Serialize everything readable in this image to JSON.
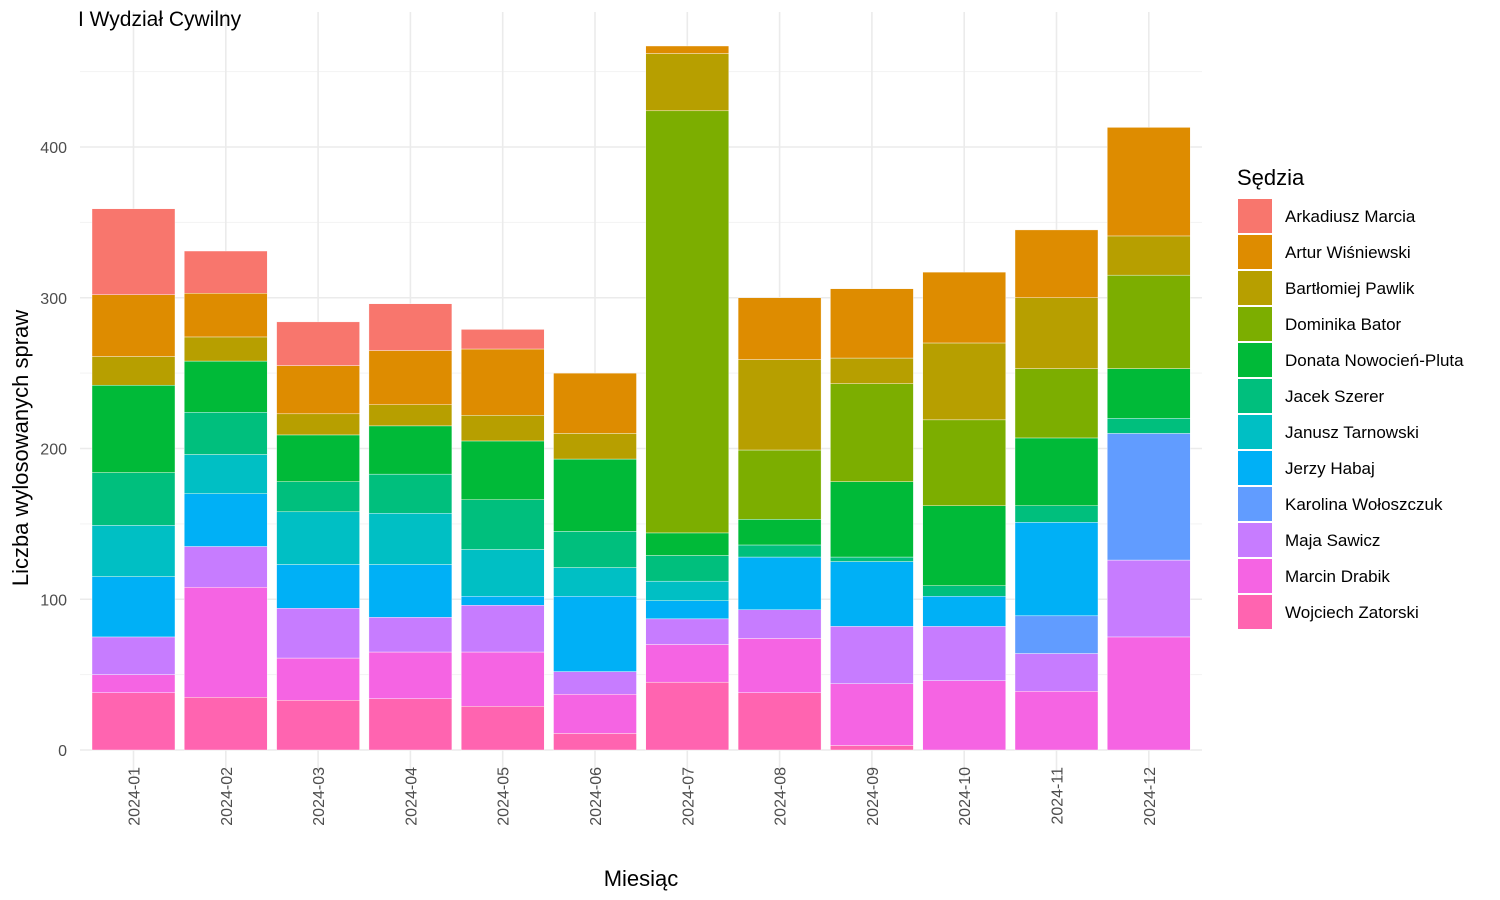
{
  "chart_data": {
    "type": "bar",
    "stacked": true,
    "title": "I Wydział Cywilny",
    "xlabel": "Miesiąc",
    "ylabel": "Liczba wylosowanych spraw",
    "ylim": [
      0,
      470
    ],
    "yticks": [
      0,
      100,
      200,
      300,
      400
    ],
    "grid": true,
    "legend_title": "Sędzia",
    "legend_position": "right",
    "categories": [
      "2024-01",
      "2024-02",
      "2024-03",
      "2024-04",
      "2024-05",
      "2024-06",
      "2024-07",
      "2024-08",
      "2024-09",
      "2024-10",
      "2024-11",
      "2024-12"
    ],
    "series": [
      {
        "name": "Wojciech Zatorski",
        "color": "#FF64B0",
        "values": [
          38,
          35,
          33,
          34,
          29,
          11,
          45,
          38,
          3,
          0,
          0,
          0
        ]
      },
      {
        "name": "Marcin Drabik",
        "color": "#F564E3",
        "values": [
          12,
          73,
          28,
          31,
          36,
          26,
          25,
          36,
          41,
          46,
          39,
          75
        ]
      },
      {
        "name": "Maja Sawicz",
        "color": "#C77CFF",
        "values": [
          25,
          27,
          33,
          23,
          31,
          15,
          17,
          19,
          38,
          36,
          25,
          51
        ]
      },
      {
        "name": "Karolina Wołoszczuk",
        "color": "#619CFF",
        "values": [
          0,
          0,
          0,
          0,
          0,
          0,
          0,
          0,
          0,
          0,
          25,
          84
        ]
      },
      {
        "name": "Jerzy Habaj",
        "color": "#00B0F6",
        "values": [
          40,
          35,
          29,
          35,
          6,
          50,
          12,
          35,
          43,
          20,
          62,
          0
        ]
      },
      {
        "name": "Janusz Tarnowski",
        "color": "#00BFC4",
        "values": [
          34,
          26,
          35,
          34,
          31,
          19,
          13,
          0,
          0,
          0,
          0,
          0
        ]
      },
      {
        "name": "Jacek Szerer",
        "color": "#00BF7D",
        "values": [
          35,
          28,
          20,
          26,
          33,
          24,
          17,
          8,
          3,
          7,
          11,
          10
        ]
      },
      {
        "name": "Donata Nowocień-Pluta",
        "color": "#00BA38",
        "values": [
          58,
          34,
          31,
          32,
          39,
          48,
          15,
          17,
          50,
          53,
          45,
          33
        ]
      },
      {
        "name": "Dominika Bator",
        "color": "#7CAE00",
        "values": [
          0,
          0,
          0,
          0,
          0,
          0,
          280,
          46,
          65,
          57,
          46,
          62
        ]
      },
      {
        "name": "Bartłomiej Pawlik",
        "color": "#B79F00",
        "values": [
          19,
          16,
          14,
          14,
          17,
          17,
          38,
          60,
          17,
          51,
          47,
          26
        ]
      },
      {
        "name": "Artur Wiśniewski",
        "color": "#DE8C00",
        "values": [
          41,
          29,
          32,
          36,
          44,
          40,
          5,
          41,
          46,
          47,
          45,
          72
        ]
      },
      {
        "name": "Arkadiusz Marcia",
        "color": "#F8766D",
        "values": [
          57,
          28,
          29,
          31,
          13,
          0,
          0,
          0,
          0,
          0,
          0,
          0
        ]
      }
    ]
  }
}
